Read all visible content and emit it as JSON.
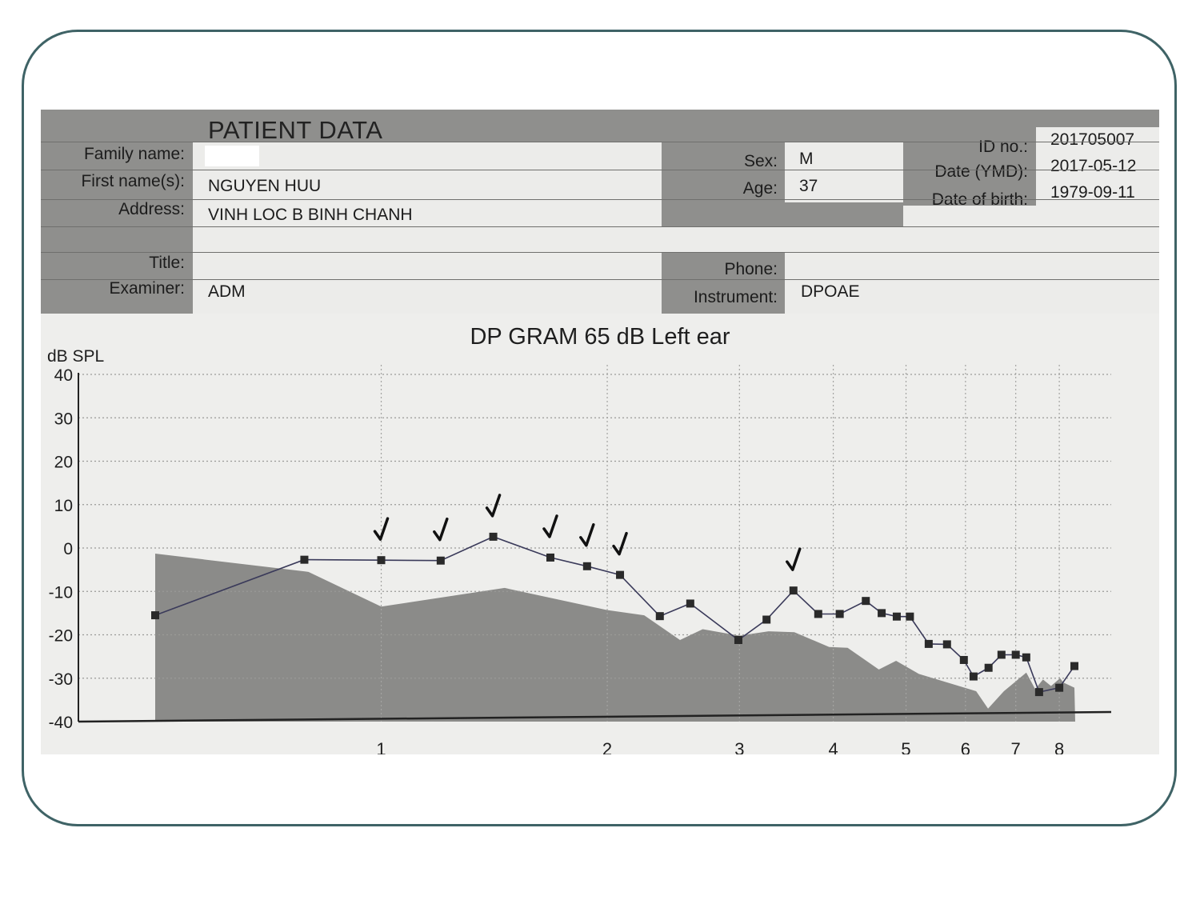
{
  "header": {
    "section_title": "PATIENT DATA",
    "family_name_label": "Family name:",
    "family_name_value": "",
    "first_name_label": "First name(s):",
    "first_name_value": "NGUYEN HUU",
    "address_label": "Address:",
    "address_value": "VINH LOC B BINH CHANH",
    "title_label": "Title:",
    "examiner_label": "Examiner:",
    "examiner_value": "ADM",
    "sex_label": "Sex:",
    "sex_value": "M",
    "age_label": "Age:",
    "age_value": "37",
    "phone_label": "Phone:",
    "instrument_label": "Instrument:",
    "instrument_value": "DPOAE",
    "id_label": "ID no.:",
    "id_value": "201705007",
    "date_label": "Date (YMD):",
    "date_value": "2017-05-12",
    "dob_label": "Date of birth:",
    "dob_value": "1979-09-11"
  },
  "chart_data": {
    "type": "line",
    "title": "DP GRAM 65 dB Left ear",
    "ylabel": "dB SPL",
    "xlabel": "",
    "ylim": [
      -40,
      40
    ],
    "yticks": [
      40,
      30,
      20,
      10,
      0,
      -10,
      -20,
      -30,
      -40
    ],
    "xscale": "log",
    "xticks": [
      1,
      2,
      3,
      4,
      5,
      6,
      7,
      8
    ],
    "xlim": [
      0.5,
      8.6
    ],
    "grid": true,
    "colors": {
      "line": "#3a3a5a",
      "marker": "#2a2a2a",
      "noise": "#8b8b89"
    },
    "series": [
      {
        "kind": "dp",
        "points": [
          [
            0.5,
            -15.5
          ],
          [
            0.79,
            -2.7
          ],
          [
            1.0,
            -2.8
          ],
          [
            1.2,
            -2.9
          ],
          [
            1.41,
            2.6
          ],
          [
            1.68,
            -2.2
          ],
          [
            1.88,
            -4.2
          ],
          [
            2.08,
            -6.2
          ],
          [
            2.35,
            -15.7
          ],
          [
            2.58,
            -12.8
          ],
          [
            2.99,
            -21.2
          ],
          [
            3.26,
            -16.5
          ],
          [
            3.54,
            -9.8
          ],
          [
            3.82,
            -15.2
          ],
          [
            4.08,
            -15.2
          ],
          [
            4.42,
            -12.2
          ],
          [
            4.64,
            -15.0
          ],
          [
            4.86,
            -15.8
          ],
          [
            5.06,
            -15.8
          ],
          [
            5.36,
            -22.1
          ],
          [
            5.67,
            -22.2
          ],
          [
            5.97,
            -25.8
          ],
          [
            6.15,
            -29.6
          ],
          [
            6.44,
            -27.6
          ],
          [
            6.7,
            -24.6
          ],
          [
            7.0,
            -24.6
          ],
          [
            7.23,
            -25.2
          ],
          [
            7.52,
            -33.2
          ],
          [
            8.0,
            -32.2
          ],
          [
            8.38,
            -27.2
          ]
        ]
      },
      {
        "kind": "noise",
        "points": [
          [
            0.5,
            -1.3
          ],
          [
            0.8,
            -5.5
          ],
          [
            1.0,
            -13.5
          ],
          [
            1.46,
            -9.2
          ],
          [
            2.0,
            -14.3
          ],
          [
            2.24,
            -15.5
          ],
          [
            2.5,
            -21.2
          ],
          [
            2.68,
            -18.7
          ],
          [
            3.0,
            -20.2
          ],
          [
            3.28,
            -19.2
          ],
          [
            3.55,
            -19.4
          ],
          [
            3.95,
            -22.8
          ],
          [
            4.18,
            -23.0
          ],
          [
            4.6,
            -28.0
          ],
          [
            4.85,
            -26.0
          ],
          [
            5.2,
            -29.0
          ],
          [
            6.2,
            -33.0
          ],
          [
            6.43,
            -37.0
          ],
          [
            6.75,
            -33.0
          ],
          [
            7.23,
            -28.7
          ],
          [
            7.43,
            -32.5
          ],
          [
            7.61,
            -30.3
          ],
          [
            7.8,
            -31.8
          ],
          [
            8.02,
            -30.0
          ],
          [
            8.1,
            -31.0
          ],
          [
            8.38,
            -32.2
          ],
          [
            8.4,
            -40
          ]
        ]
      }
    ],
    "checkmarks_at_x": [
      1.0,
      1.2,
      1.41,
      1.68,
      1.88,
      2.08,
      3.54
    ]
  }
}
